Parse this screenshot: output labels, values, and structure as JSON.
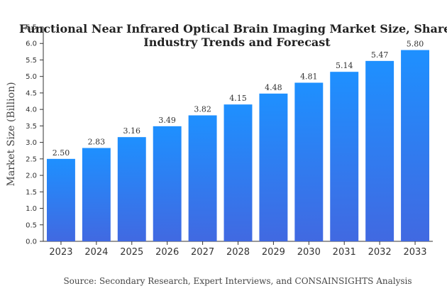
{
  "chart_data": {
    "type": "bar",
    "title_lines": [
      "Functional Near Infrared Optical Brain Imaging Market Size, Share,",
      "Industry Trends and Forecast"
    ],
    "ylabel": "Market Size (Billion)",
    "xlabel": "",
    "categories": [
      "2023",
      "2024",
      "2025",
      "2026",
      "2027",
      "2028",
      "2029",
      "2030",
      "2031",
      "2032",
      "2033"
    ],
    "values": [
      2.5,
      2.83,
      3.16,
      3.49,
      3.82,
      4.15,
      4.48,
      4.81,
      5.14,
      5.47,
      5.8
    ],
    "value_labels": [
      "2.50",
      "2.83",
      "3.16",
      "3.49",
      "3.82",
      "4.15",
      "4.48",
      "4.81",
      "5.14",
      "5.47",
      "5.80"
    ],
    "yticks": [
      "0.0",
      "0.5",
      "1.0",
      "1.5",
      "2.0",
      "2.5",
      "3.0",
      "3.5",
      "4.0",
      "4.5",
      "5.0",
      "5.5",
      "6.0",
      "6.5"
    ],
    "ylim": [
      0,
      6.5
    ],
    "grid": false,
    "colors": {
      "bar_top": "#1e90ff",
      "bar_bottom": "#4169e1",
      "axis": "#333333"
    }
  },
  "source": "Source: Secondary Research, Expert Interviews, and CONSAINSIGHTS Analysis"
}
